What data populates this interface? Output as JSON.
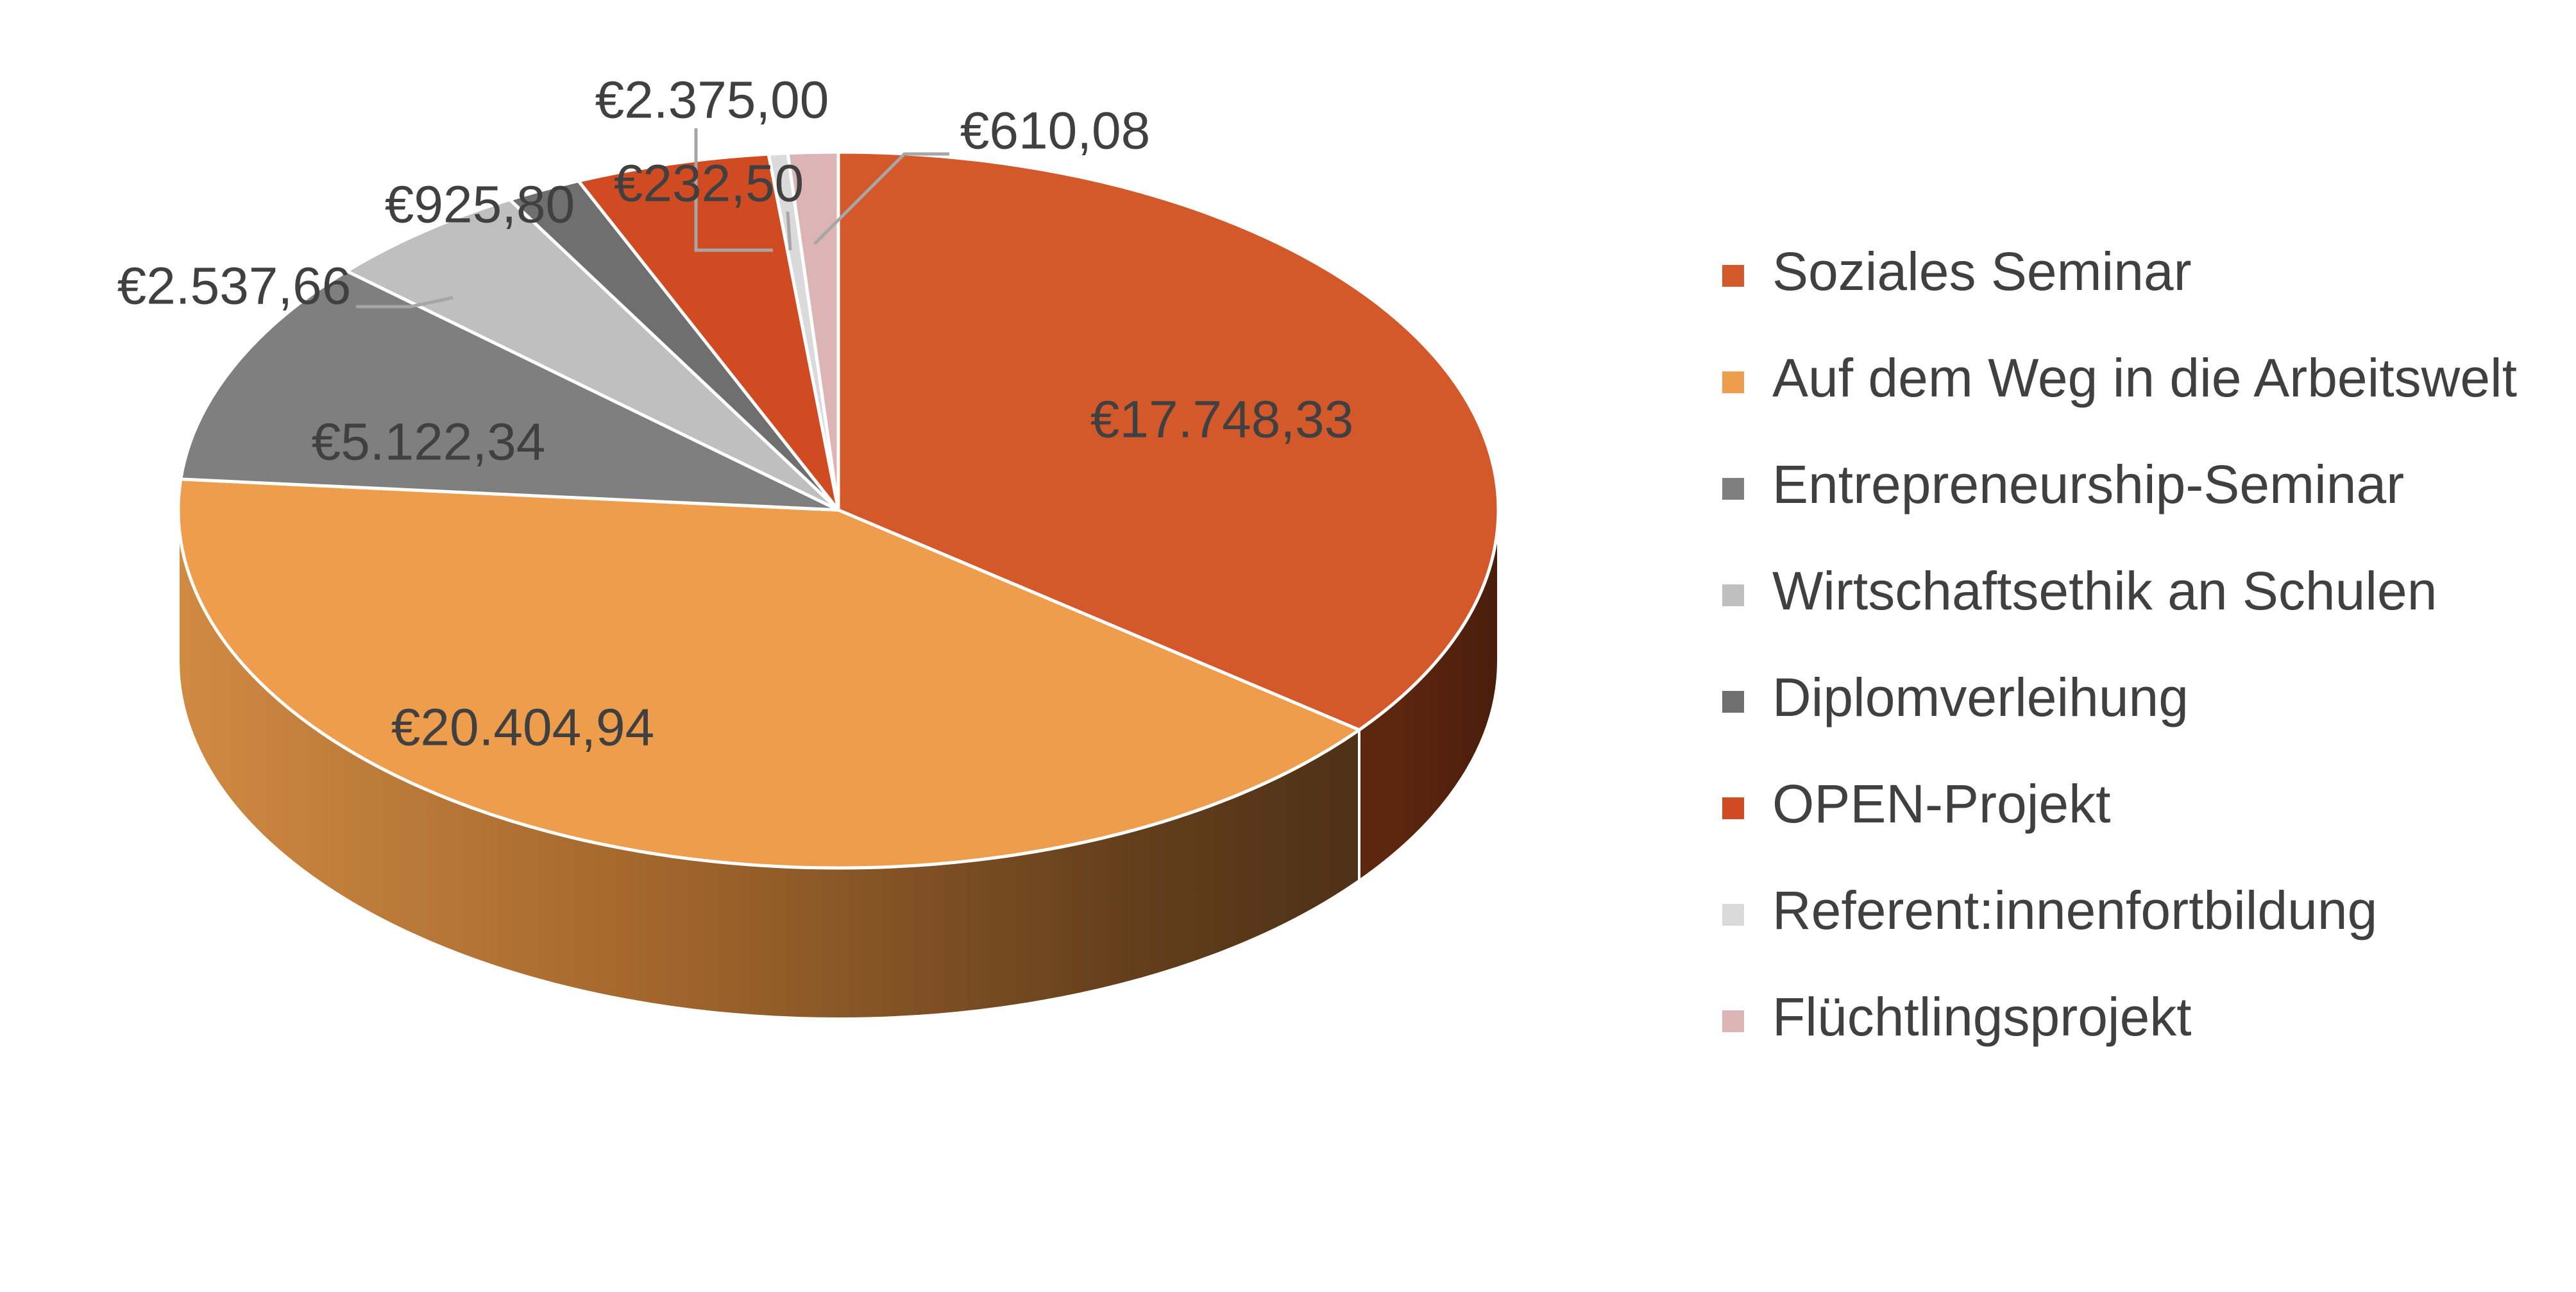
{
  "chart_data": {
    "type": "pie",
    "variant": "3d",
    "title": "",
    "currency_symbol": "€",
    "legend_position": "right",
    "slices": [
      {
        "name": "Soziales Seminar",
        "value": 17748.33,
        "label": "€17.748,33",
        "color": "#D4592A"
      },
      {
        "name": "Auf dem Weg in die Arbeitswelt",
        "value": 20404.94,
        "label": "€20.404,94",
        "color": "#ED9D4C"
      },
      {
        "name": "Entrepreneurship-Seminar",
        "value": 5122.34,
        "label": "€5.122,34",
        "color": "#7F7F7F"
      },
      {
        "name": "Wirtschaftsethik an Schulen",
        "value": 2537.66,
        "label": "€2.537,66",
        "color": "#BFBFBF"
      },
      {
        "name": "Diplomverleihung",
        "value": 925.8,
        "label": "€925,80",
        "color": "#6F6F6F"
      },
      {
        "name": "OPEN-Projekt",
        "value": 2375.0,
        "label": "€2.375,00",
        "color": "#D14B22"
      },
      {
        "name": "Referent:innenfortbildung",
        "value": 232.5,
        "label": "€232,50",
        "color": "#DADADA"
      },
      {
        "name": "Flüchtlingsprojekt",
        "value": 610.08,
        "label": "€610,08",
        "color": "#DDB4B4"
      }
    ]
  }
}
